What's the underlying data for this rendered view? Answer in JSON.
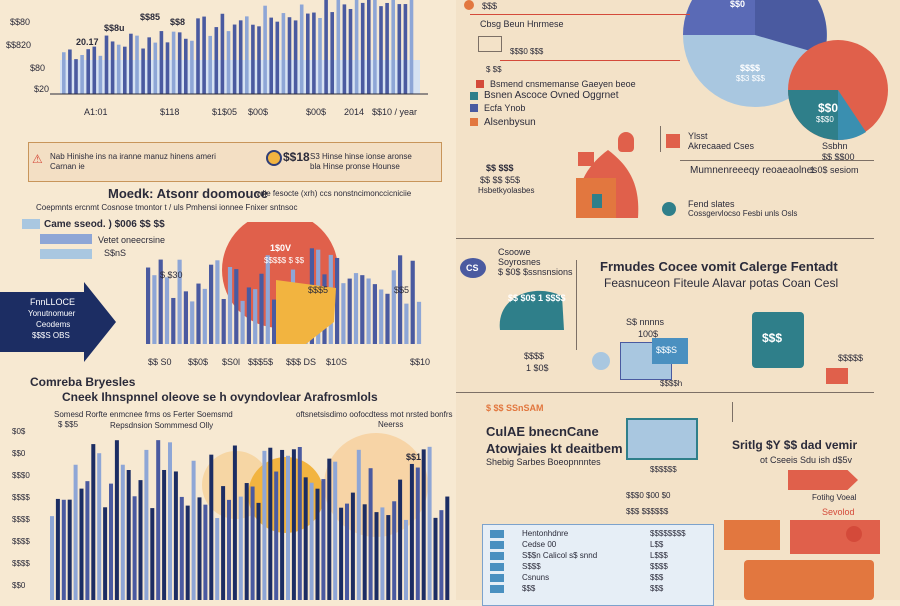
{
  "colors": {
    "background": "#f7e9d2",
    "bar_blue": "#4a5aa0",
    "bar_light": "#8ea6d6",
    "navy": "#1c2d63",
    "orange": "#e2773f",
    "coral": "#e0604b",
    "yellow": "#f2b440",
    "teal": "#2f7f8a",
    "light_blue": "#a9c7e0",
    "accent_red": "#d44a3a"
  },
  "icons": [
    "warning-icon",
    "coin-icon",
    "tag-icon",
    "person-icon",
    "house-icon",
    "shopping-bag-icon",
    "register-icon",
    "box-icon",
    "truck-icon",
    "arrow-icon"
  ],
  "left": {
    "top_chart": {
      "y_ticks": [
        "$$80",
        "$$820",
        "$80",
        "$20"
      ],
      "x_ticks": [
        "A1:01",
        "$118",
        "$1$05",
        "$00$",
        "$00$",
        "2014",
        "$$10 / year"
      ],
      "annotations": [
        "$$85",
        "$$8",
        "20.17",
        "$$8u"
      ]
    },
    "alert": {
      "text_left": "Nab Hinishe ins na iranne manuz hinens ameri",
      "text_left2": "Carnan ie",
      "value": "$$18",
      "text_right": "S3 Hinse hinse ionse aronse",
      "text_right2": "bla Hinse pronse Hounse"
    },
    "section_title": "Moedk: Atsonr doomouce",
    "section_sub1": "vdie fesocte (xrh) ccs nonstncimonccicniciie",
    "section_sub2": "Coepmnts ercnmt Cosnose tmontor t / uls Pmhensi ionnee Fnixer sntnsoc",
    "mid_chart": {
      "legend1": "Came sseod. ) $006 $$ $$",
      "legend2": "Vetet oneecrsine",
      "legend3": "S$nS",
      "y_top": "$ $30",
      "badge1": "1$0V",
      "badge2": "$$$$$ $ $$",
      "label_a": "$$$5",
      "label_b": "$$5",
      "x_ticks": [
        "$$ S0",
        "$$0$",
        "$S0l",
        "$$$5$",
        "$$$ DS",
        "$10S",
        "$$10"
      ]
    },
    "arrow_text": [
      "FnnLLOCE",
      "Yonutnomuer",
      "Ceodems",
      "$$$S OBS"
    ],
    "big_title": "Comreba Bryesles",
    "big_sub1": "Cneek Ihnspnnel oleove se h ovyndovlear Arafrosmlols",
    "big_sub2": "Somesd Rorfte enmcnee frms os Ferter Soemsmd",
    "big_sub3": "$ $$5",
    "big_sub4": "Repsdnsion Sommmesd Olly",
    "big_sub5": "oftsnetsisdimo oofocdtess mot nrsted bonfrs",
    "big_sub6": "Neerss",
    "bottom_chart": {
      "y_ticks": [
        "$0$",
        "$$0",
        "$$$0",
        "$$$$",
        "$$$$",
        "$$$$",
        "$$$$",
        "$$0"
      ],
      "label": "$$1"
    }
  },
  "right": {
    "top": {
      "label1": "$$$",
      "label2": "Cbsg Beun Hnrmese",
      "label3": "$$$0 $$$",
      "label4": "$ $$",
      "list": [
        "Bsmend cnsmemanse Gaeyen beoe",
        "Bsnen Ascoce Ovned Oggrnet",
        "Ecfa Ynob",
        "Alsenbysun"
      ],
      "pie_labels": [
        "$$0",
        "$$$$",
        "$$3 $$$",
        "$$0",
        "$$$0"
      ]
    },
    "mid_top": {
      "c1": "Ylsst",
      "c2": "Akrecaaed Cses",
      "c3": "Ssbhn",
      "c4": "$$ $$00",
      "c5": "1 0$ sesiom",
      "c6": "Mumnenreeeqy reoaeaolnes",
      "c7": "Fend slates",
      "c8": "Cossgervlocso Fesbi unls Osls",
      "left1": "$$ $$$",
      "left2": "$$ $$ $5$",
      "left3": "Hsbetkyolasbes"
    },
    "section2": {
      "title1": "Frmudes Cocee vomit Calerge Fentadt",
      "title2": "Feasnuceon Fiteule Alavar potas Coan Cesl",
      "badge": "CS",
      "tag1": "Csoowe",
      "tag2": "Soyrosnes",
      "tag3": "$ $0$ $ssnsnsions",
      "box1": "$$ $0$ 1 $$$$",
      "s1": "S$ nnnns",
      "s2": "100$",
      "s3": "$$$S",
      "left_note": "$$$$",
      "price": "$$$",
      "s4": "1 $0$",
      "s5": "$$$$$",
      "s6": "$$$$h"
    },
    "section3": {
      "num": "$ $$ SSnSAM",
      "title1": "CulAE bnecnCane",
      "title2": "Atowjaies kt deaitbem",
      "title3": "Shebig Sarbes Boeopnnntes",
      "right1": "Sritlg $Y $$ dad vemir",
      "right2": "ot Cseeis Sdu ish d$5v",
      "right3": "Fotihg Voeal",
      "right4": "Sevolod",
      "p1": "$$$$$$",
      "p2": "$$$0 $00 $0",
      "p3": "$$$ $$$$$$",
      "list": [
        "Hentonhdnre",
        "Cedse 00",
        "S$$n Calicol s$ snnd",
        "S$$$",
        "Csnuns",
        "$$$"
      ],
      "prices": [
        "$$$$$$$$",
        "L$$",
        "L$$$",
        "$$$$",
        "$$$",
        "$$$"
      ]
    }
  }
}
